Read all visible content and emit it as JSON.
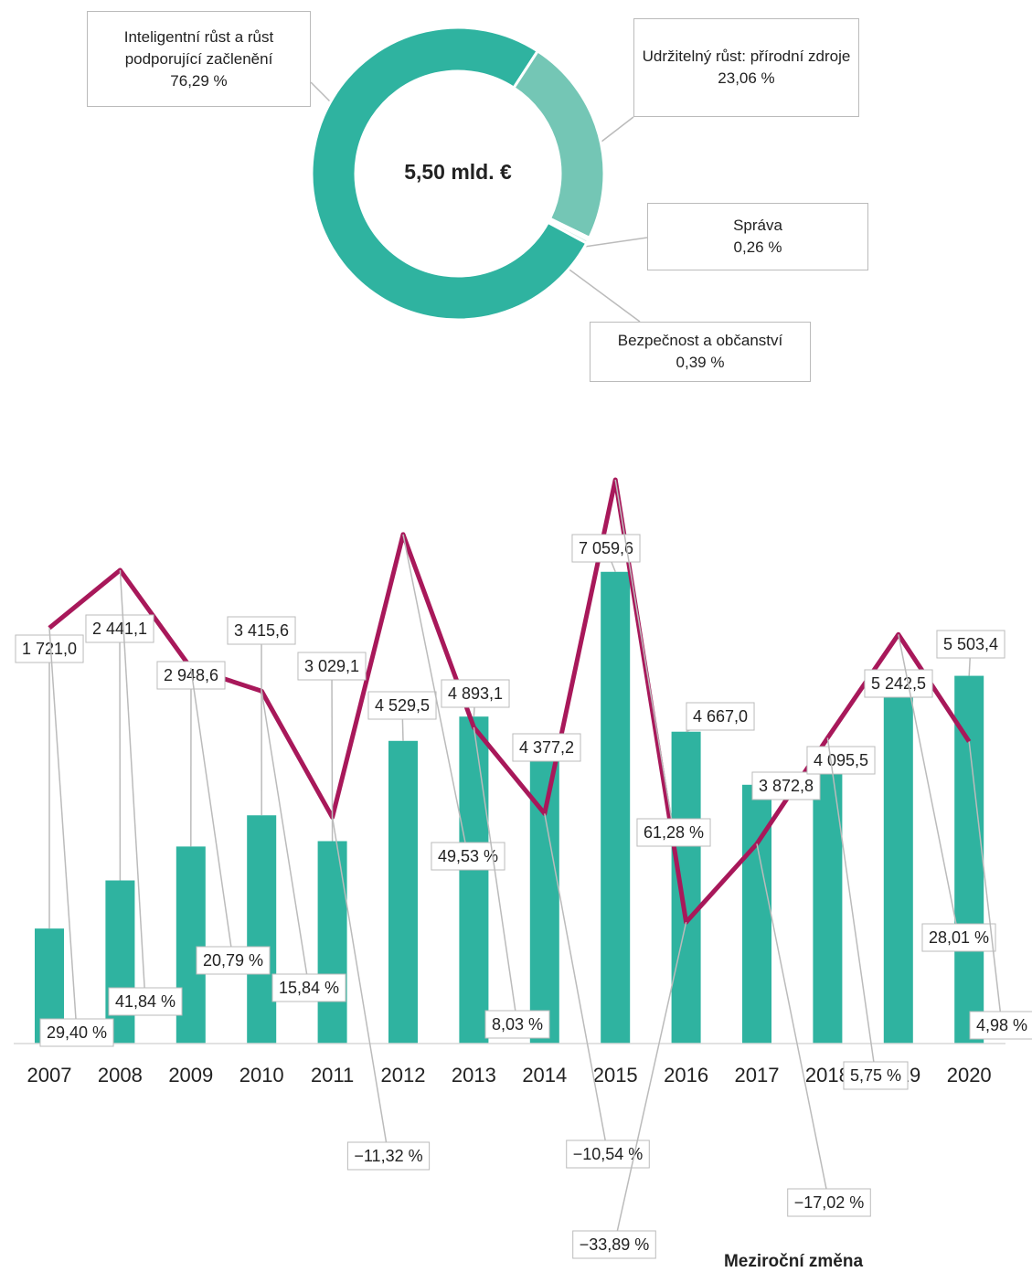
{
  "chart_data": [
    {
      "type": "donut",
      "center_label": "5,50 mld. €",
      "categories": [
        "Inteligentní růst a růst podporující začlenění",
        "Udržitelný růst: přírodní zdroje",
        "Správa",
        "Bezpečnost a občanství"
      ],
      "values": [
        76.29,
        23.06,
        0.26,
        0.39
      ],
      "value_labels": [
        "76,29 %",
        "23,06 %",
        "0,26 %",
        "0,39 %"
      ],
      "colors": [
        "#2fb3a0",
        "#74c6b5",
        "#a8dccf",
        "#c9ebe2"
      ]
    },
    {
      "type": "bar",
      "categories": [
        "2007",
        "2008",
        "2009",
        "2010",
        "2011",
        "2012",
        "2013",
        "2014",
        "2015",
        "2016",
        "2017",
        "2018",
        "2019",
        "2020"
      ],
      "series": [
        {
          "color": "#2fb3a0",
          "values": [
            1721.0,
            2441.1,
            2948.6,
            3415.6,
            3029.1,
            4529.5,
            4893.1,
            4377.2,
            7059.6,
            4667.0,
            3872.8,
            4095.5,
            5242.5,
            5503.4
          ],
          "value_labels": [
            "1 721,0",
            "2 441,1",
            "2 948,6",
            "3 415,6",
            "3 029,1",
            "4 529,5",
            "4 893,1",
            "4 377,2",
            "7 059,6",
            "4 667,0",
            "3 872,8",
            "4 095,5",
            "5 242,5",
            "5 503,4"
          ]
        },
        {
          "name": "Meziroční změna",
          "type": "line",
          "axis": "y2",
          "color": "#a8185a",
          "values": [
            29.4,
            41.84,
            20.79,
            15.84,
            -11.32,
            49.53,
            8.03,
            -10.54,
            61.28,
            -33.89,
            -17.02,
            5.75,
            28.01,
            4.98
          ],
          "value_labels": [
            "29,40 %",
            "41,84 %",
            "20,79 %",
            "15,84 %",
            "−11,32 %",
            "49,53 %",
            "8,03 %",
            "−10,54 %",
            "61,28 %",
            "−33,89 %",
            "−17,02 %",
            "5,75 %",
            "28,01 %",
            "4,98 %"
          ]
        }
      ],
      "negative_label_color": "#ff0000",
      "ylim": [
        0,
        8000
      ],
      "y2lim": [
        -60,
        55
      ]
    }
  ]
}
